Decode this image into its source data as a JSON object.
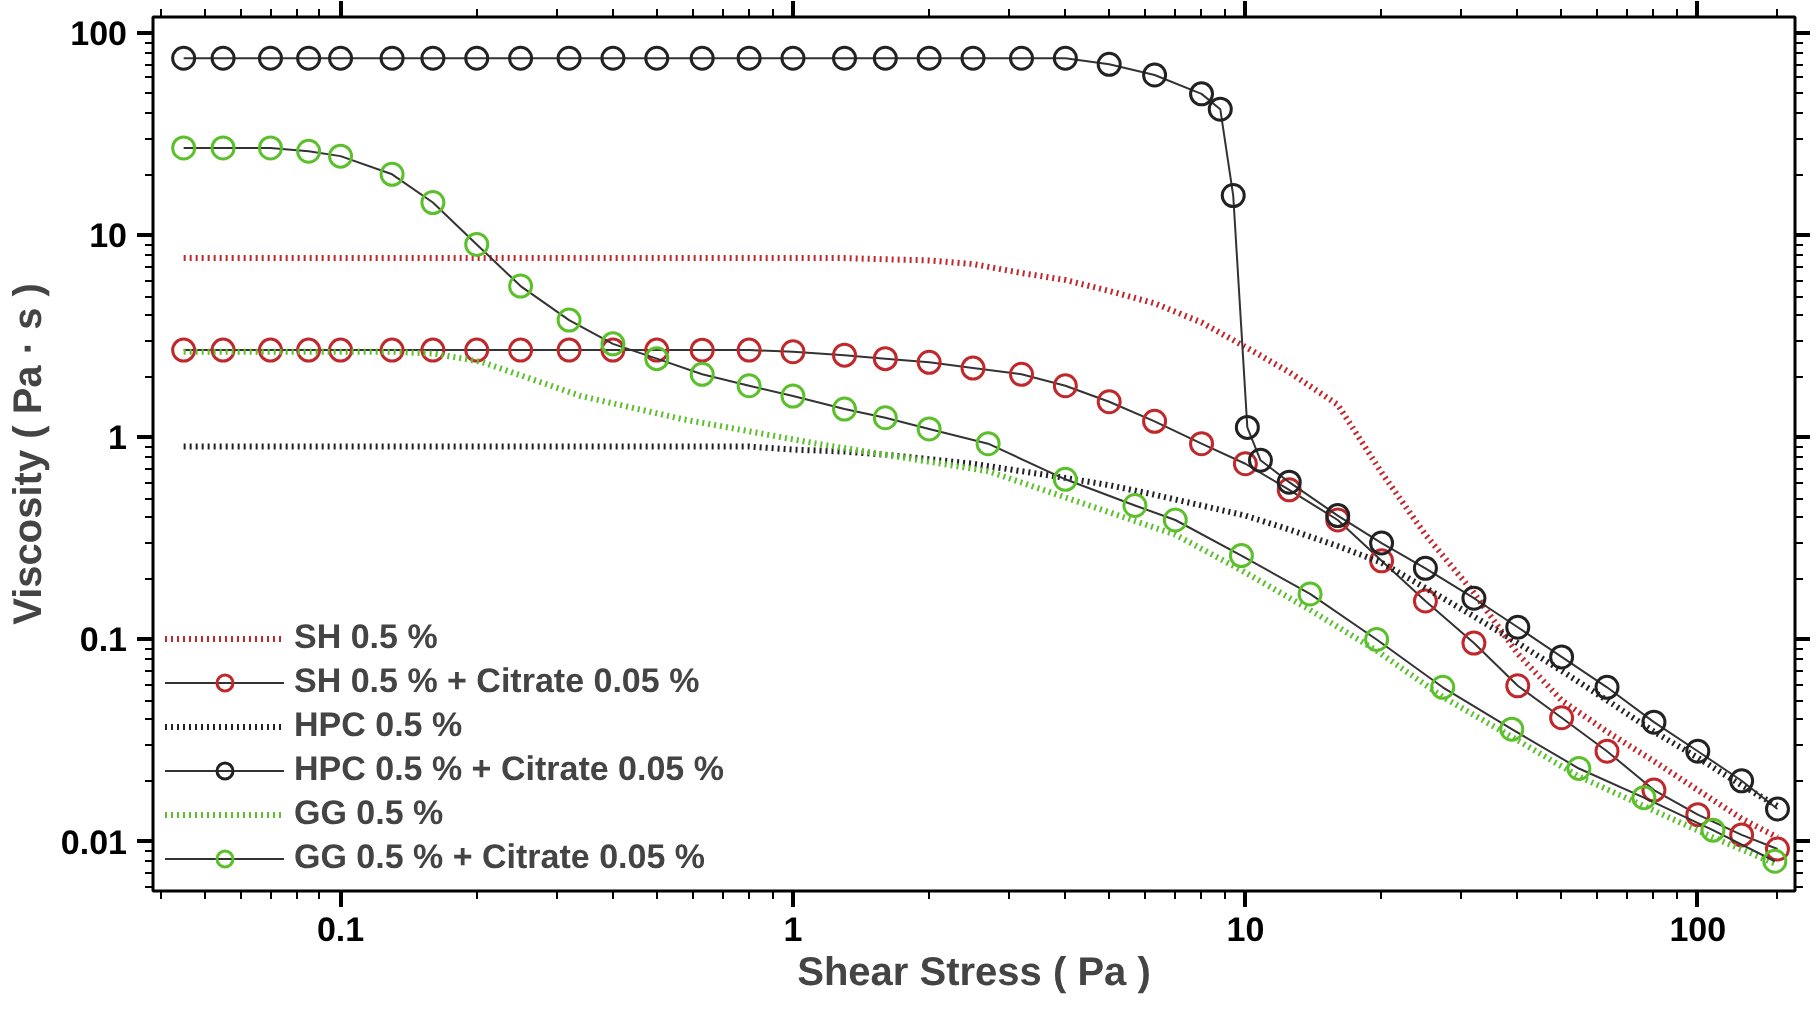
{
  "chart_data": {
    "type": "line",
    "xlabel": "Shear Stress ( Pa )",
    "ylabel": "Viscosity ( Pa · s )",
    "log": "xy",
    "grid": false,
    "legend": "bottom left",
    "xlim": [
      0.0385,
      164
    ],
    "ylim": [
      0.0057,
      120
    ],
    "xticks": [
      {
        "value": 0.04,
        "label": null
      },
      {
        "value": 0.05,
        "label": null
      },
      {
        "value": 0.06,
        "label": null
      },
      {
        "value": 0.07,
        "label": null
      },
      {
        "value": 0.08,
        "label": null
      },
      {
        "value": 0.09,
        "label": null
      },
      0.1,
      {
        "value": 0.2,
        "label": null
      },
      {
        "value": 0.3,
        "label": null
      },
      {
        "value": 0.4,
        "label": null
      },
      {
        "value": 0.5,
        "label": null
      },
      {
        "value": 0.6,
        "label": null
      },
      {
        "value": 0.7,
        "label": null
      },
      {
        "value": 0.8,
        "label": null
      },
      {
        "value": 0.9,
        "label": null
      },
      1,
      {
        "value": 2,
        "label": null
      },
      {
        "value": 3,
        "label": null
      },
      {
        "value": 4,
        "label": null
      },
      {
        "value": 5,
        "label": null
      },
      {
        "value": 6,
        "label": null
      },
      {
        "value": 7,
        "label": null
      },
      {
        "value": 8,
        "label": null
      },
      {
        "value": 9,
        "label": null
      },
      10,
      {
        "value": 20,
        "label": null
      },
      {
        "value": 30,
        "label": null
      },
      {
        "value": 40,
        "label": null
      },
      {
        "value": 50,
        "label": null
      },
      {
        "value": 60,
        "label": null
      },
      {
        "value": 70,
        "label": null
      },
      {
        "value": 80,
        "label": null
      },
      {
        "value": 90,
        "label": null
      },
      100,
      {
        "value": 150,
        "label": null
      }
    ],
    "yticks": [
      {
        "value": 0.006,
        "label": null
      },
      {
        "value": 0.007,
        "label": null
      },
      {
        "value": 0.008,
        "label": null
      },
      {
        "value": 0.009,
        "label": null
      },
      0.01,
      {
        "value": 0.02,
        "label": null
      },
      {
        "value": 0.03,
        "label": null
      },
      {
        "value": 0.04,
        "label": null
      },
      {
        "value": 0.05,
        "label": null
      },
      {
        "value": 0.06,
        "label": null
      },
      {
        "value": 0.07,
        "label": null
      },
      {
        "value": 0.08,
        "label": null
      },
      {
        "value": 0.09,
        "label": null
      },
      0.1,
      {
        "value": 0.2,
        "label": null
      },
      {
        "value": 0.3,
        "label": null
      },
      {
        "value": 0.4,
        "label": null
      },
      {
        "value": 0.5,
        "label": null
      },
      {
        "value": 0.6,
        "label": null
      },
      {
        "value": 0.7,
        "label": null
      },
      {
        "value": 0.8,
        "label": null
      },
      {
        "value": 0.9,
        "label": null
      },
      1,
      {
        "value": 2,
        "label": null
      },
      {
        "value": 3,
        "label": null
      },
      {
        "value": 4,
        "label": null
      },
      {
        "value": 5,
        "label": null
      },
      {
        "value": 6,
        "label": null
      },
      {
        "value": 7,
        "label": null
      },
      {
        "value": 8,
        "label": null
      },
      {
        "value": 9,
        "label": null
      },
      10,
      {
        "value": 20,
        "label": null
      },
      {
        "value": 30,
        "label": null
      },
      {
        "value": 40,
        "label": null
      },
      {
        "value": 50,
        "label": null
      },
      {
        "value": 60,
        "label": null
      },
      {
        "value": 70,
        "label": null
      },
      {
        "value": 80,
        "label": null
      },
      {
        "value": 90,
        "label": null
      },
      100
    ],
    "series": [
      {
        "name": "SH 0.5 %",
        "color": "#c0282c",
        "marker": "none",
        "line_style": "dotted",
        "x": [
          0.045,
          0.055,
          0.07,
          0.085,
          0.1,
          0.13,
          0.16,
          0.2,
          0.25,
          0.32,
          0.4,
          0.5,
          0.63,
          0.8,
          1,
          1.3,
          1.6,
          2,
          2.5,
          3.2,
          4,
          5,
          6.3,
          8,
          10,
          12.5,
          16,
          20,
          25,
          32,
          40,
          50,
          63,
          80,
          100,
          125,
          150
        ],
        "values": [
          7.7,
          7.7,
          7.7,
          7.7,
          7.7,
          7.7,
          7.7,
          7.7,
          7.7,
          7.7,
          7.7,
          7.7,
          7.7,
          7.7,
          7.7,
          7.7,
          7.6,
          7.5,
          7.2,
          6.5,
          6.0,
          5.3,
          4.6,
          3.7,
          2.8,
          2.1,
          1.45,
          0.67,
          0.33,
          0.17,
          0.085,
          0.05,
          0.035,
          0.025,
          0.018,
          0.013,
          0.0105
        ]
      },
      {
        "name": "SH 0.5 % + Citrate 0.05 %",
        "color": "#c0282c",
        "marker": "circle",
        "line_style": "solid",
        "x": [
          0.045,
          0.055,
          0.07,
          0.085,
          0.1,
          0.13,
          0.16,
          0.2,
          0.25,
          0.32,
          0.4,
          0.5,
          0.63,
          0.8,
          1,
          1.3,
          1.6,
          2,
          2.5,
          3.2,
          4,
          5,
          6.3,
          8,
          10,
          12.5,
          16,
          20,
          25,
          32,
          40,
          50,
          63,
          80,
          100,
          125,
          150
        ],
        "values": [
          2.7,
          2.7,
          2.7,
          2.7,
          2.7,
          2.7,
          2.7,
          2.7,
          2.7,
          2.7,
          2.7,
          2.7,
          2.7,
          2.7,
          2.65,
          2.55,
          2.45,
          2.35,
          2.2,
          2.05,
          1.8,
          1.5,
          1.2,
          0.93,
          0.74,
          0.55,
          0.39,
          0.245,
          0.155,
          0.096,
          0.059,
          0.041,
          0.028,
          0.018,
          0.0136,
          0.0108,
          0.0092
        ]
      },
      {
        "name": "HPC 0.5 %",
        "color": "#222222",
        "marker": "none",
        "line_style": "dotted",
        "x": [
          0.045,
          0.055,
          0.07,
          0.085,
          0.1,
          0.13,
          0.16,
          0.2,
          0.25,
          0.32,
          0.4,
          0.5,
          0.63,
          0.8,
          1,
          1.3,
          1.6,
          2,
          2.5,
          3.2,
          4,
          5,
          6.3,
          8,
          10,
          12.5,
          16,
          20,
          25,
          32,
          40,
          50,
          63,
          80,
          100,
          125,
          150
        ],
        "values": [
          0.9,
          0.9,
          0.9,
          0.9,
          0.9,
          0.9,
          0.9,
          0.9,
          0.9,
          0.9,
          0.9,
          0.9,
          0.9,
          0.9,
          0.87,
          0.85,
          0.82,
          0.78,
          0.74,
          0.68,
          0.63,
          0.58,
          0.52,
          0.46,
          0.41,
          0.35,
          0.29,
          0.24,
          0.18,
          0.13,
          0.096,
          0.07,
          0.05,
          0.035,
          0.026,
          0.019,
          0.015
        ]
      },
      {
        "name": "HPC 0.5 % + Citrate 0.05 %",
        "color": "#222222",
        "marker": "circle",
        "line_style": "solid",
        "x": [
          0.045,
          0.055,
          0.07,
          0.085,
          0.1,
          0.13,
          0.16,
          0.2,
          0.25,
          0.32,
          0.4,
          0.5,
          0.63,
          0.8,
          1,
          1.3,
          1.6,
          2,
          2.5,
          3.2,
          4,
          5,
          6.3,
          8,
          8.8,
          9.4,
          10.1,
          10.8,
          12.5,
          16,
          20,
          25,
          32,
          40,
          50,
          63,
          80,
          100,
          125,
          150
        ],
        "values": [
          75,
          75,
          75,
          75,
          75,
          75,
          75,
          75,
          75,
          75,
          75,
          75,
          75,
          75,
          75,
          75,
          75,
          75,
          75,
          75,
          75,
          70,
          62,
          50,
          42,
          15.7,
          1.12,
          0.77,
          0.6,
          0.41,
          0.3,
          0.225,
          0.16,
          0.115,
          0.082,
          0.058,
          0.039,
          0.028,
          0.02,
          0.0145
        ]
      },
      {
        "name": "GG 0.5 %",
        "color": "#5cc02c",
        "marker": "none",
        "line_style": "dotted",
        "x": [
          0.045,
          0.055,
          0.07,
          0.085,
          0.1,
          0.13,
          0.16,
          0.205,
          0.34,
          0.57,
          1.13,
          2.7,
          7,
          9.8,
          13.9,
          19.5,
          27.3,
          38.8,
          54.6,
          76,
          108,
          148
        ],
        "values": [
          2.65,
          2.65,
          2.65,
          2.65,
          2.65,
          2.65,
          2.6,
          2.36,
          1.6,
          1.23,
          0.93,
          0.68,
          0.33,
          0.22,
          0.14,
          0.088,
          0.052,
          0.033,
          0.021,
          0.015,
          0.0105,
          0.0078
        ]
      },
      {
        "name": "GG 0.5 % + Citrate 0.05 %",
        "color": "#5cc02c",
        "marker": "circle",
        "line_style": "solid",
        "x": [
          0.045,
          0.055,
          0.07,
          0.085,
          0.1,
          0.13,
          0.16,
          0.2,
          0.25,
          0.32,
          0.4,
          0.5,
          0.63,
          0.8,
          1,
          1.3,
          1.6,
          2,
          2.7,
          4,
          5.7,
          7,
          9.8,
          13.9,
          19.5,
          27.3,
          38.8,
          54.6,
          76,
          108,
          148
        ],
        "values": [
          27,
          27,
          27,
          26,
          24.6,
          20,
          14.5,
          9,
          5.6,
          3.8,
          2.9,
          2.45,
          2.05,
          1.8,
          1.6,
          1.38,
          1.25,
          1.1,
          0.93,
          0.62,
          0.46,
          0.39,
          0.26,
          0.168,
          0.1,
          0.058,
          0.036,
          0.023,
          0.0165,
          0.0114,
          0.008
        ]
      }
    ]
  }
}
